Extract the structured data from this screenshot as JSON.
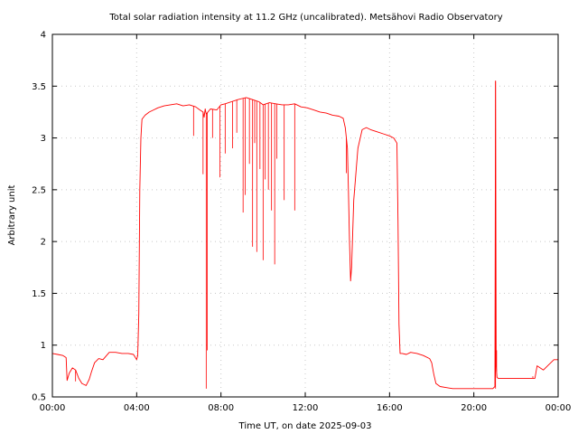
{
  "chart_data": {
    "type": "line",
    "title": "Total solar radiation intensity at 11.2 GHz (uncalibrated). Metsähovi Radio Observatory",
    "xlabel": "Time UT, on date 2025-09-03",
    "ylabel": "Arbitrary unit",
    "xlim": [
      0,
      24
    ],
    "ylim": [
      0.5,
      4
    ],
    "x_ticks": [
      0,
      4,
      8,
      12,
      16,
      20,
      24
    ],
    "x_tick_labels": [
      "00:00",
      "04:00",
      "08:00",
      "12:00",
      "16:00",
      "20:00",
      "00:00"
    ],
    "y_ticks": [
      0.5,
      1,
      1.5,
      2,
      2.5,
      3,
      3.5,
      4
    ],
    "y_tick_labels": [
      "0.5",
      "1",
      "1.5",
      "2",
      "2.5",
      "3",
      "3.5",
      "4"
    ],
    "grid": true,
    "series": [
      {
        "color": "#ff0000",
        "x": [
          0.0,
          0.25,
          0.5,
          0.65,
          0.7,
          0.8,
          0.95,
          1.1,
          1.25,
          1.4,
          1.6,
          1.75,
          1.85,
          2.0,
          2.2,
          2.4,
          2.7,
          3.0,
          3.3,
          3.6,
          3.85,
          4.0,
          4.05,
          4.1,
          4.15,
          4.2,
          4.25,
          4.4,
          4.6,
          4.8,
          5.0,
          5.3,
          5.6,
          5.9,
          6.2,
          6.5,
          6.8,
          7.0,
          7.15,
          7.2,
          7.25,
          7.3,
          7.5,
          7.8,
          8.0,
          8.2,
          8.5,
          8.8,
          9.0,
          9.2,
          9.5,
          9.8,
          10.0,
          10.3,
          10.6,
          10.9,
          11.2,
          11.5,
          11.8,
          12.1,
          12.4,
          12.7,
          13.0,
          13.3,
          13.6,
          13.8,
          13.9,
          14.0,
          14.05,
          14.1,
          14.15,
          14.2,
          14.3,
          14.5,
          14.7,
          14.9,
          15.1,
          15.4,
          15.7,
          16.0,
          16.2,
          16.35,
          16.4,
          16.45,
          16.5,
          16.6,
          16.8,
          17.0,
          17.3,
          17.6,
          17.9,
          18.0,
          18.1,
          18.2,
          18.4,
          18.7,
          19.0,
          19.4,
          19.8,
          20.2,
          20.6,
          20.9,
          21.0,
          21.03,
          21.06,
          21.1,
          21.15,
          21.2,
          21.4,
          21.8,
          22.2,
          22.6,
          22.9,
          23.0,
          23.3,
          23.6,
          23.8,
          24.0
        ],
        "y": [
          0.92,
          0.91,
          0.9,
          0.88,
          0.66,
          0.73,
          0.78,
          0.76,
          0.68,
          0.63,
          0.61,
          0.67,
          0.74,
          0.83,
          0.87,
          0.86,
          0.93,
          0.93,
          0.92,
          0.92,
          0.91,
          0.86,
          0.9,
          1.3,
          2.5,
          3.0,
          3.18,
          3.22,
          3.25,
          3.27,
          3.29,
          3.31,
          3.32,
          3.33,
          3.31,
          3.32,
          3.3,
          3.27,
          3.25,
          3.2,
          3.28,
          3.23,
          3.28,
          3.27,
          3.32,
          3.33,
          3.35,
          3.37,
          3.38,
          3.39,
          3.37,
          3.35,
          3.32,
          3.34,
          3.33,
          3.32,
          3.32,
          3.33,
          3.3,
          3.29,
          3.27,
          3.25,
          3.24,
          3.22,
          3.21,
          3.19,
          3.1,
          2.9,
          2.5,
          2.0,
          1.62,
          1.75,
          2.4,
          2.9,
          3.08,
          3.1,
          3.08,
          3.06,
          3.04,
          3.02,
          3.0,
          2.95,
          2.2,
          1.2,
          0.92,
          0.92,
          0.91,
          0.93,
          0.92,
          0.9,
          0.87,
          0.83,
          0.72,
          0.63,
          0.6,
          0.59,
          0.58,
          0.58,
          0.58,
          0.58,
          0.58,
          0.58,
          0.6,
          3.55,
          0.8,
          0.69,
          0.68,
          0.68,
          0.68,
          0.68,
          0.68,
          0.68,
          0.68,
          0.8,
          0.76,
          0.82,
          0.86,
          0.86
        ]
      }
    ],
    "spikes": [
      {
        "x": 1.1,
        "y": 0.65
      },
      {
        "x": 6.7,
        "y": 3.02
      },
      {
        "x": 7.15,
        "y": 2.65
      },
      {
        "x": 7.3,
        "y": 0.58
      },
      {
        "x": 7.35,
        "y": 0.95
      },
      {
        "x": 7.6,
        "y": 3.0
      },
      {
        "x": 7.95,
        "y": 2.62
      },
      {
        "x": 8.2,
        "y": 2.85
      },
      {
        "x": 8.55,
        "y": 2.9
      },
      {
        "x": 8.75,
        "y": 3.05
      },
      {
        "x": 9.05,
        "y": 2.28
      },
      {
        "x": 9.15,
        "y": 2.45
      },
      {
        "x": 9.35,
        "y": 2.75
      },
      {
        "x": 9.5,
        "y": 1.95
      },
      {
        "x": 9.6,
        "y": 2.95
      },
      {
        "x": 9.7,
        "y": 1.9
      },
      {
        "x": 9.85,
        "y": 2.7
      },
      {
        "x": 10.0,
        "y": 1.82
      },
      {
        "x": 10.1,
        "y": 2.6
      },
      {
        "x": 10.25,
        "y": 2.5
      },
      {
        "x": 10.4,
        "y": 2.3
      },
      {
        "x": 10.55,
        "y": 1.78
      },
      {
        "x": 10.65,
        "y": 2.8
      },
      {
        "x": 11.0,
        "y": 2.4
      },
      {
        "x": 11.5,
        "y": 2.3
      },
      {
        "x": 13.95,
        "y": 2.66
      },
      {
        "x": 21.03,
        "y": 0.58
      },
      {
        "x": 21.08,
        "y": 0.95
      },
      {
        "x": 22.8,
        "y": 0.7
      }
    ]
  }
}
